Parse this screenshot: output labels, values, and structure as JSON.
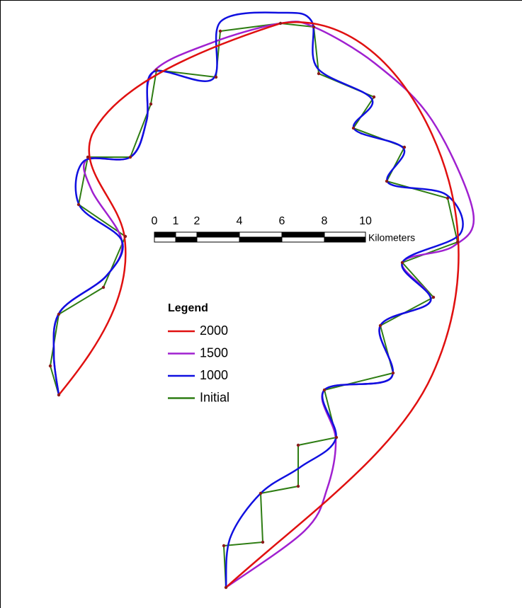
{
  "scale_bar": {
    "ticks": [
      "0",
      "1",
      "2",
      "4",
      "6",
      "8",
      "10"
    ],
    "unit": "Kilometers"
  },
  "legend": {
    "title": "Legend",
    "entries": [
      "2000",
      "1500",
      "1000",
      "Initial"
    ]
  }
}
